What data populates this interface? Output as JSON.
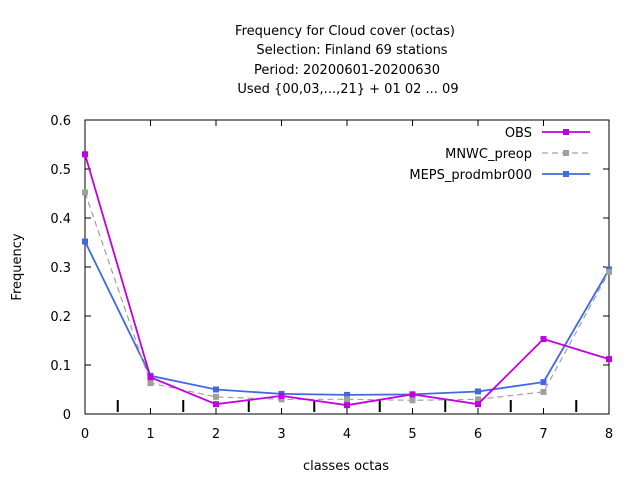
{
  "chart_data": {
    "type": "line",
    "title_lines": [
      "Frequency  for Cloud cover (octas)",
      "Selection: Finland     69 stations",
      "Period: 20200601-20200630",
      "Used {00,03,...,21} + 01 02 ... 09"
    ],
    "xlabel": "classes octas",
    "ylabel": "Frequency",
    "xlim": [
      0,
      8
    ],
    "ylim": [
      0,
      0.6
    ],
    "x_ticks": [
      "0",
      "1",
      "2",
      "3",
      "4",
      "5",
      "6",
      "7",
      "8"
    ],
    "y_ticks": [
      "0",
      "0.1",
      "0.2",
      "0.3",
      "0.4",
      "0.5",
      "0.6"
    ],
    "x": [
      0,
      1,
      2,
      3,
      4,
      5,
      6,
      7,
      8
    ],
    "legend_position": "top-right",
    "series": [
      {
        "name": "OBS",
        "color": "#c000e0",
        "dash": "solid",
        "marker": "filled-square",
        "values": [
          0.53,
          0.075,
          0.02,
          0.037,
          0.018,
          0.04,
          0.02,
          0.153,
          0.112
        ]
      },
      {
        "name": "MNWC_preop",
        "color": "#a0a0a0",
        "dash": "dashed",
        "marker": "filled-square",
        "values": [
          0.452,
          0.063,
          0.035,
          0.03,
          0.03,
          0.028,
          0.03,
          0.045,
          0.29
        ]
      },
      {
        "name": "MEPS_prodmbr000",
        "color": "#4169e1",
        "dash": "solid",
        "marker": "filled-square",
        "values": [
          0.352,
          0.078,
          0.05,
          0.041,
          0.039,
          0.04,
          0.046,
          0.065,
          0.295
        ]
      }
    ],
    "class_boundaries": [
      0.5,
      1.5,
      2.5,
      3.5,
      4.5,
      5.5,
      6.5,
      7.5
    ]
  }
}
